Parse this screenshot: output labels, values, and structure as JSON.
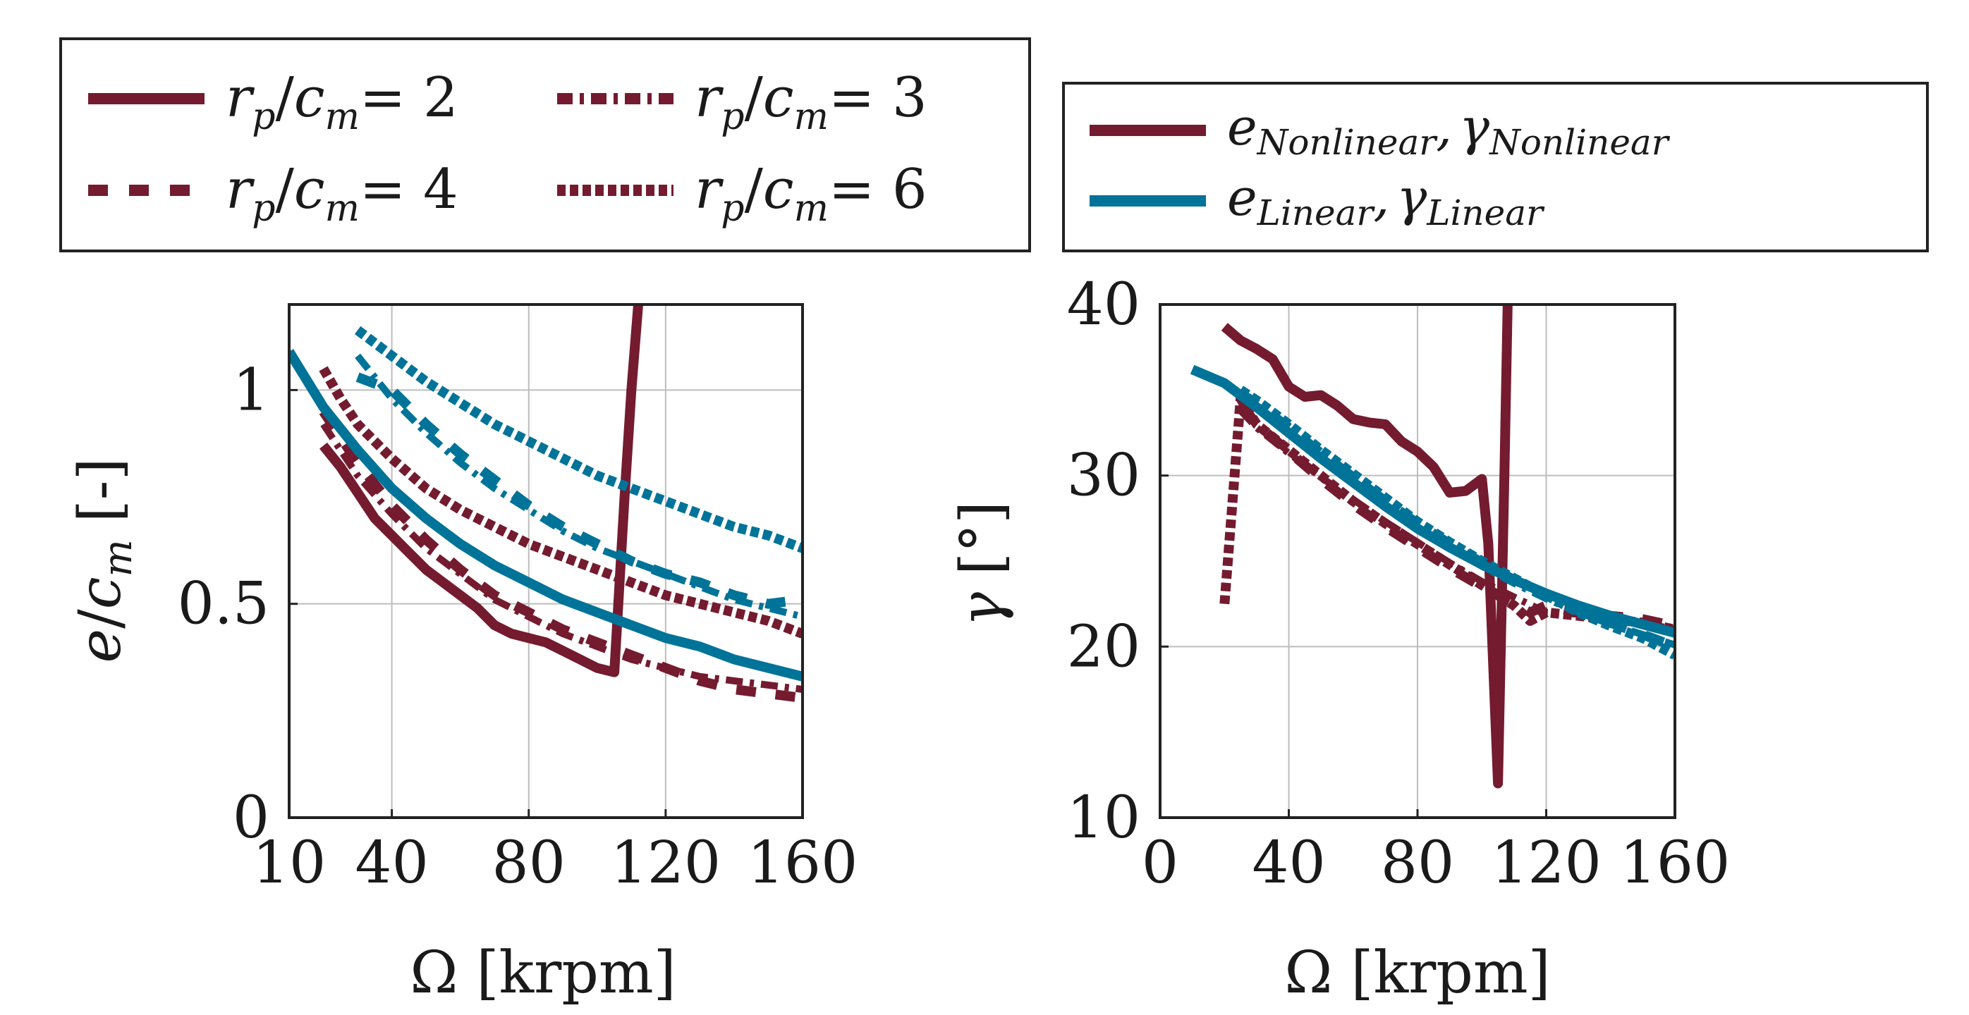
{
  "colors": {
    "nonlinear": "#741b2f",
    "linear": "#007398",
    "grid": "#bdbdbd",
    "axis": "#222222"
  },
  "legend_left": {
    "entries": [
      {
        "style": "solid",
        "num": "r",
        "num_sub": "p",
        "den": "c",
        "den_sub": "m",
        "value": "= 2"
      },
      {
        "style": "dashdot",
        "num": "r",
        "num_sub": "p",
        "den": "c",
        "den_sub": "m",
        "value": "= 3"
      },
      {
        "style": "dashed",
        "num": "r",
        "num_sub": "p",
        "den": "c",
        "den_sub": "m",
        "value": "= 4"
      },
      {
        "style": "dotted",
        "num": "r",
        "num_sub": "p",
        "den": "c",
        "den_sub": "m",
        "value": "= 6"
      }
    ]
  },
  "legend_right": {
    "entries": [
      {
        "color": "nonlinear",
        "e": "e",
        "e_sub": "Nonlinear",
        "sep": ",",
        "g": "γ",
        "g_sub": "Nonlinear"
      },
      {
        "color": "linear",
        "e": "e",
        "e_sub": "Linear",
        "sep": ",",
        "g": "γ",
        "g_sub": "Linear"
      }
    ]
  },
  "chart_data": [
    {
      "type": "line",
      "title": "",
      "xlabel": "Ω [krpm]",
      "ylabel_main": "e",
      "ylabel_slash": "/",
      "ylabel_c": "c",
      "ylabel_sub": "m",
      "ylabel_unit": "[-]",
      "xlim": [
        10,
        160
      ],
      "ylim": [
        0,
        1.2
      ],
      "xticks": [
        10,
        40,
        80,
        120,
        160
      ],
      "yticks": [
        0,
        0.5,
        1
      ],
      "xticklabels": [
        "10",
        "40",
        "80",
        "120",
        "160"
      ],
      "yticklabels": [
        "0",
        "0.5",
        "1"
      ],
      "grid": true,
      "series": [
        {
          "name": "Nonlinear r_p/c_m=2",
          "model": "nonlinear",
          "style": "solid",
          "x": [
            20,
            25,
            30,
            35,
            40,
            45,
            50,
            55,
            60,
            65,
            70,
            75,
            80,
            85,
            90,
            95,
            100,
            105,
            108,
            110,
            112
          ],
          "y": [
            0.87,
            0.82,
            0.76,
            0.7,
            0.66,
            0.62,
            0.58,
            0.55,
            0.52,
            0.49,
            0.45,
            0.43,
            0.42,
            0.41,
            0.39,
            0.37,
            0.35,
            0.34,
            0.75,
            1.0,
            1.2
          ]
        },
        {
          "name": "Nonlinear r_p/c_m=3",
          "model": "nonlinear",
          "style": "dashdot",
          "x": [
            20,
            25,
            30,
            40,
            50,
            60,
            70,
            80,
            90,
            100,
            110,
            120,
            130,
            140,
            150,
            160
          ],
          "y": [
            0.92,
            0.86,
            0.8,
            0.71,
            0.63,
            0.57,
            0.51,
            0.47,
            0.43,
            0.4,
            0.37,
            0.35,
            0.33,
            0.32,
            0.31,
            0.3
          ]
        },
        {
          "name": "Nonlinear r_p/c_m=4",
          "model": "nonlinear",
          "style": "dashed",
          "x": [
            20,
            25,
            30,
            40,
            50,
            60,
            70,
            80,
            90,
            100,
            110,
            120,
            130,
            140,
            150,
            160
          ],
          "y": [
            0.95,
            0.89,
            0.83,
            0.73,
            0.65,
            0.58,
            0.52,
            0.48,
            0.44,
            0.41,
            0.38,
            0.35,
            0.32,
            0.3,
            0.29,
            0.28
          ]
        },
        {
          "name": "Nonlinear r_p/c_m=6",
          "model": "nonlinear",
          "style": "dotted",
          "x": [
            20,
            25,
            30,
            40,
            50,
            60,
            70,
            80,
            90,
            100,
            110,
            120,
            130,
            140,
            150,
            160
          ],
          "y": [
            1.05,
            0.98,
            0.92,
            0.84,
            0.77,
            0.72,
            0.68,
            0.64,
            0.61,
            0.58,
            0.55,
            0.52,
            0.5,
            0.48,
            0.46,
            0.43
          ]
        },
        {
          "name": "Linear r_p/c_m=2",
          "model": "linear",
          "style": "solid",
          "x": [
            10,
            20,
            30,
            40,
            50,
            60,
            70,
            80,
            90,
            100,
            110,
            120,
            130,
            140,
            150,
            160
          ],
          "y": [
            1.09,
            0.96,
            0.86,
            0.77,
            0.7,
            0.64,
            0.59,
            0.55,
            0.51,
            0.48,
            0.45,
            0.42,
            0.4,
            0.37,
            0.35,
            0.33
          ]
        },
        {
          "name": "Linear r_p/c_m=3",
          "model": "linear",
          "style": "dashdot",
          "x": [
            30,
            40,
            50,
            60,
            70,
            80,
            90,
            100,
            110,
            120,
            130,
            140,
            150,
            160
          ],
          "y": [
            1.08,
            0.98,
            0.9,
            0.83,
            0.77,
            0.72,
            0.67,
            0.63,
            0.6,
            0.57,
            0.54,
            0.51,
            0.49,
            0.47
          ]
        },
        {
          "name": "Linear r_p/c_m=4",
          "model": "linear",
          "style": "dashed",
          "x": [
            30,
            40,
            50,
            60,
            70,
            80,
            90,
            100,
            110,
            120,
            130,
            140,
            150,
            160
          ],
          "y": [
            1.03,
            1.0,
            0.92,
            0.85,
            0.79,
            0.73,
            0.68,
            0.64,
            0.6,
            0.57,
            0.55,
            0.52,
            0.5,
            0.51
          ]
        },
        {
          "name": "Linear r_p/c_m=6",
          "model": "linear",
          "style": "dotted",
          "x": [
            30,
            40,
            50,
            60,
            70,
            80,
            90,
            100,
            110,
            120,
            130,
            140,
            150,
            160
          ],
          "y": [
            1.14,
            1.08,
            1.02,
            0.97,
            0.92,
            0.88,
            0.84,
            0.8,
            0.77,
            0.74,
            0.71,
            0.68,
            0.66,
            0.63
          ]
        }
      ]
    },
    {
      "type": "line",
      "title": "",
      "xlabel": "Ω [krpm]",
      "ylabel_main": "γ",
      "ylabel_unit": "[°]",
      "xlim": [
        0,
        160
      ],
      "ylim": [
        10,
        40
      ],
      "xticks": [
        0,
        40,
        80,
        120,
        160
      ],
      "yticks": [
        10,
        20,
        30,
        40
      ],
      "xticklabels": [
        "0",
        "40",
        "80",
        "120",
        "160"
      ],
      "yticklabels": [
        "10",
        "20",
        "30",
        "40"
      ],
      "grid": true,
      "series": [
        {
          "name": "Nonlinear r_p/c_m=2",
          "model": "nonlinear",
          "style": "solid",
          "x": [
            20,
            25,
            30,
            35,
            40,
            45,
            50,
            55,
            60,
            65,
            70,
            75,
            80,
            85,
            90,
            95,
            100,
            102,
            105,
            107,
            108
          ],
          "y": [
            38.7,
            37.9,
            37.4,
            36.8,
            35.2,
            34.6,
            34.7,
            34.1,
            33.3,
            33.1,
            33.0,
            32.0,
            31.4,
            30.5,
            29.0,
            29.1,
            29.8,
            26.0,
            12.0,
            30.0,
            40.0
          ]
        },
        {
          "name": "Nonlinear r_p/c_m=3",
          "model": "nonlinear",
          "style": "dashdot",
          "x": [
            25,
            30,
            40,
            50,
            60,
            70,
            80,
            90,
            100,
            110,
            120,
            130,
            140,
            150,
            160
          ],
          "y": [
            33.8,
            32.8,
            31.3,
            29.9,
            28.6,
            27.3,
            26.1,
            24.9,
            23.8,
            22.9,
            22.0,
            21.9,
            21.6,
            21.4,
            21.0
          ]
        },
        {
          "name": "Nonlinear r_p/c_m=4",
          "model": "nonlinear",
          "style": "dashed",
          "x": [
            25,
            30,
            40,
            50,
            60,
            70,
            80,
            90,
            100,
            110,
            115,
            120,
            130,
            140,
            150,
            160
          ],
          "y": [
            34.2,
            33.0,
            31.4,
            29.8,
            28.3,
            27.0,
            25.8,
            24.6,
            23.5,
            22.5,
            22.0,
            22.4,
            22.0,
            21.8,
            21.6,
            21.2
          ]
        },
        {
          "name": "Nonlinear r_p/c_m=6",
          "model": "nonlinear",
          "style": "dotted",
          "x": [
            20,
            25,
            30,
            40,
            50,
            60,
            70,
            80,
            90,
            100,
            110,
            115,
            120,
            130,
            140,
            150,
            160
          ],
          "y": [
            22.5,
            34.5,
            33.0,
            31.5,
            30.0,
            28.5,
            27.2,
            26.0,
            24.8,
            23.6,
            22.4,
            21.5,
            22.0,
            21.8,
            21.6,
            21.4,
            21.0
          ]
        },
        {
          "name": "Linear r_p/c_m=2",
          "model": "linear",
          "style": "solid",
          "x": [
            10,
            20,
            30,
            40,
            50,
            60,
            70,
            80,
            90,
            100,
            110,
            120,
            130,
            140,
            150,
            160
          ],
          "y": [
            36.2,
            35.4,
            34.0,
            32.5,
            31.0,
            29.6,
            28.2,
            26.9,
            25.8,
            24.8,
            23.9,
            23.1,
            22.4,
            21.8,
            21.3,
            20.8
          ]
        },
        {
          "name": "Linear r_p/c_m=3",
          "model": "linear",
          "style": "dashdot",
          "x": [
            25,
            30,
            40,
            50,
            60,
            70,
            80,
            90,
            100,
            110,
            120,
            130,
            140,
            150,
            160
          ],
          "y": [
            34.6,
            34.0,
            32.6,
            31.1,
            29.7,
            28.3,
            27.0,
            25.8,
            24.7,
            23.7,
            22.8,
            22.0,
            21.3,
            20.7,
            20.1
          ]
        },
        {
          "name": "Linear r_p/c_m=4",
          "model": "linear",
          "style": "dashed",
          "x": [
            25,
            30,
            40,
            50,
            60,
            70,
            80,
            90,
            100,
            110,
            120,
            130,
            140,
            150,
            160
          ],
          "y": [
            34.8,
            34.2,
            32.8,
            31.3,
            29.9,
            28.5,
            27.2,
            26.0,
            24.9,
            23.9,
            23.0,
            22.1,
            21.4,
            20.7,
            20.0
          ]
        },
        {
          "name": "Linear r_p/c_m=6",
          "model": "linear",
          "style": "dotted",
          "x": [
            25,
            30,
            40,
            50,
            60,
            70,
            80,
            90,
            100,
            110,
            120,
            130,
            140,
            150,
            160
          ],
          "y": [
            35.0,
            34.4,
            33.0,
            31.5,
            30.1,
            28.7,
            27.3,
            26.1,
            25.0,
            24.0,
            23.0,
            22.0,
            21.2,
            20.5,
            19.5
          ]
        }
      ]
    }
  ]
}
